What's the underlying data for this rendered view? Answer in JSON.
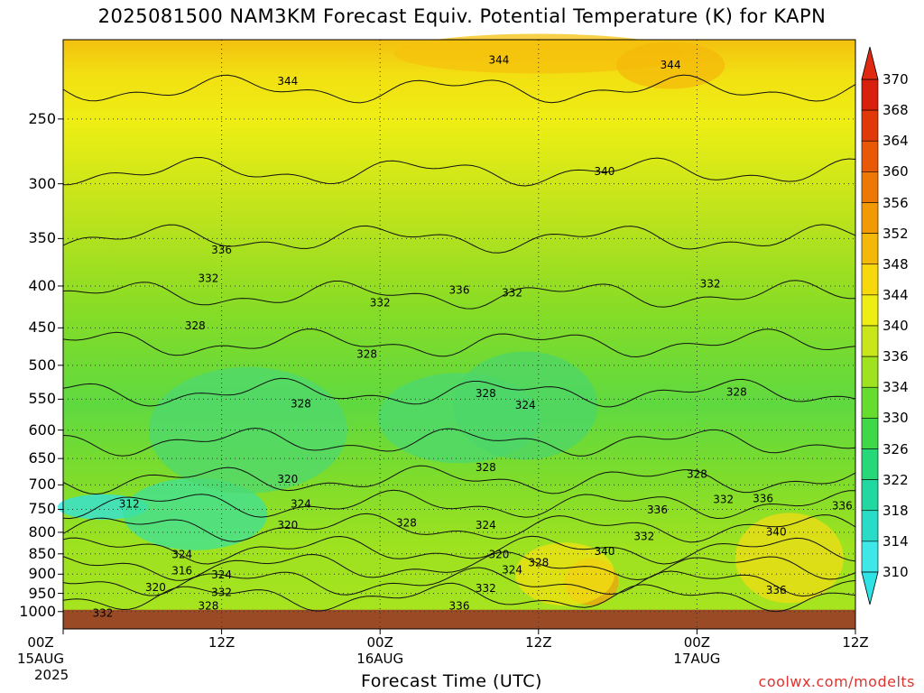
{
  "title": "2025081500 NAM3KM Forecast Equiv. Potential Temperature (K) for KAPN",
  "x_axis_title": "Forecast Time (UTC)",
  "credit": "coolwx.com/modelts",
  "colors": {
    "ground": "#9b4a26",
    "low": "#2ee2e6",
    "high": "#e02a10"
  },
  "chart_data": {
    "type": "heatmap",
    "title": "2025081500 NAM3KM Forecast Equiv. Potential Temperature (K) for KAPN",
    "xlabel": "Forecast Time (UTC)",
    "ylabel": "",
    "x_ticks": [
      {
        "hour": 0,
        "lines": [
          "00Z",
          "15AUG",
          "2025"
        ]
      },
      {
        "hour": 12,
        "lines": [
          "12Z"
        ]
      },
      {
        "hour": 24,
        "lines": [
          "00Z",
          "16AUG"
        ]
      },
      {
        "hour": 36,
        "lines": [
          "12Z"
        ]
      },
      {
        "hour": 48,
        "lines": [
          "00Z",
          "17AUG"
        ]
      },
      {
        "hour": 60,
        "lines": [
          "12Z"
        ]
      }
    ],
    "xlim": [
      0,
      60
    ],
    "y_ticks": [
      250,
      300,
      350,
      400,
      450,
      500,
      550,
      600,
      650,
      700,
      750,
      800,
      850,
      900,
      950,
      1000
    ],
    "ylim": [
      1000,
      200
    ],
    "y_scale": "log",
    "grid": true,
    "colorbar": {
      "levels": [
        310,
        314,
        318,
        322,
        326,
        330,
        334,
        336,
        340,
        344,
        348,
        352,
        356,
        360,
        364,
        368,
        370
      ],
      "colors": [
        "#3fe8e8",
        "#28dcc8",
        "#20d8a0",
        "#26d878",
        "#3fd848",
        "#66dc2e",
        "#9ee220",
        "#c8e61a",
        "#eeee14",
        "#f6d80c",
        "#f4b808",
        "#f29a06",
        "#ee7806",
        "#e85806",
        "#e03808",
        "#d8200c"
      ]
    },
    "contour_labels": [
      {
        "text": "344",
        "hour": 17,
        "p": 225
      },
      {
        "text": "344",
        "hour": 33,
        "p": 212
      },
      {
        "text": "344",
        "hour": 46,
        "p": 215
      },
      {
        "text": "340",
        "hour": 41,
        "p": 290
      },
      {
        "text": "336",
        "hour": 12,
        "p": 362
      },
      {
        "text": "332",
        "hour": 11,
        "p": 392
      },
      {
        "text": "332",
        "hour": 24,
        "p": 420
      },
      {
        "text": "336",
        "hour": 30,
        "p": 405
      },
      {
        "text": "332",
        "hour": 34,
        "p": 408
      },
      {
        "text": "332",
        "hour": 49,
        "p": 398
      },
      {
        "text": "328",
        "hour": 10,
        "p": 448
      },
      {
        "text": "328",
        "hour": 23,
        "p": 485
      },
      {
        "text": "328",
        "hour": 18,
        "p": 558
      },
      {
        "text": "328",
        "hour": 32,
        "p": 542
      },
      {
        "text": "324",
        "hour": 35,
        "p": 560
      },
      {
        "text": "328",
        "hour": 51,
        "p": 540
      },
      {
        "text": "328",
        "hour": 32,
        "p": 667
      },
      {
        "text": "328",
        "hour": 48,
        "p": 680
      },
      {
        "text": "320",
        "hour": 17,
        "p": 690
      },
      {
        "text": "324",
        "hour": 18,
        "p": 740
      },
      {
        "text": "320",
        "hour": 17,
        "p": 785
      },
      {
        "text": "312",
        "hour": 5,
        "p": 740
      },
      {
        "text": "328",
        "hour": 26,
        "p": 780
      },
      {
        "text": "324",
        "hour": 32,
        "p": 785
      },
      {
        "text": "320",
        "hour": 33,
        "p": 853
      },
      {
        "text": "328",
        "hour": 36,
        "p": 872
      },
      {
        "text": "324",
        "hour": 34,
        "p": 890
      },
      {
        "text": "332",
        "hour": 32,
        "p": 938
      },
      {
        "text": "340",
        "hour": 41,
        "p": 845
      },
      {
        "text": "332",
        "hour": 44,
        "p": 810
      },
      {
        "text": "336",
        "hour": 45,
        "p": 752
      },
      {
        "text": "332",
        "hour": 50,
        "p": 730
      },
      {
        "text": "336",
        "hour": 53,
        "p": 728
      },
      {
        "text": "340",
        "hour": 54,
        "p": 800
      },
      {
        "text": "336",
        "hour": 59,
        "p": 743
      },
      {
        "text": "336",
        "hour": 54,
        "p": 942
      },
      {
        "text": "324",
        "hour": 9,
        "p": 853
      },
      {
        "text": "316",
        "hour": 9,
        "p": 893
      },
      {
        "text": "324",
        "hour": 12,
        "p": 903
      },
      {
        "text": "320",
        "hour": 7,
        "p": 935
      },
      {
        "text": "332",
        "hour": 12,
        "p": 948
      },
      {
        "text": "328",
        "hour": 11,
        "p": 985
      },
      {
        "text": "332",
        "hour": 3,
        "p": 1005
      },
      {
        "text": "336",
        "hour": 30,
        "p": 985
      }
    ]
  }
}
